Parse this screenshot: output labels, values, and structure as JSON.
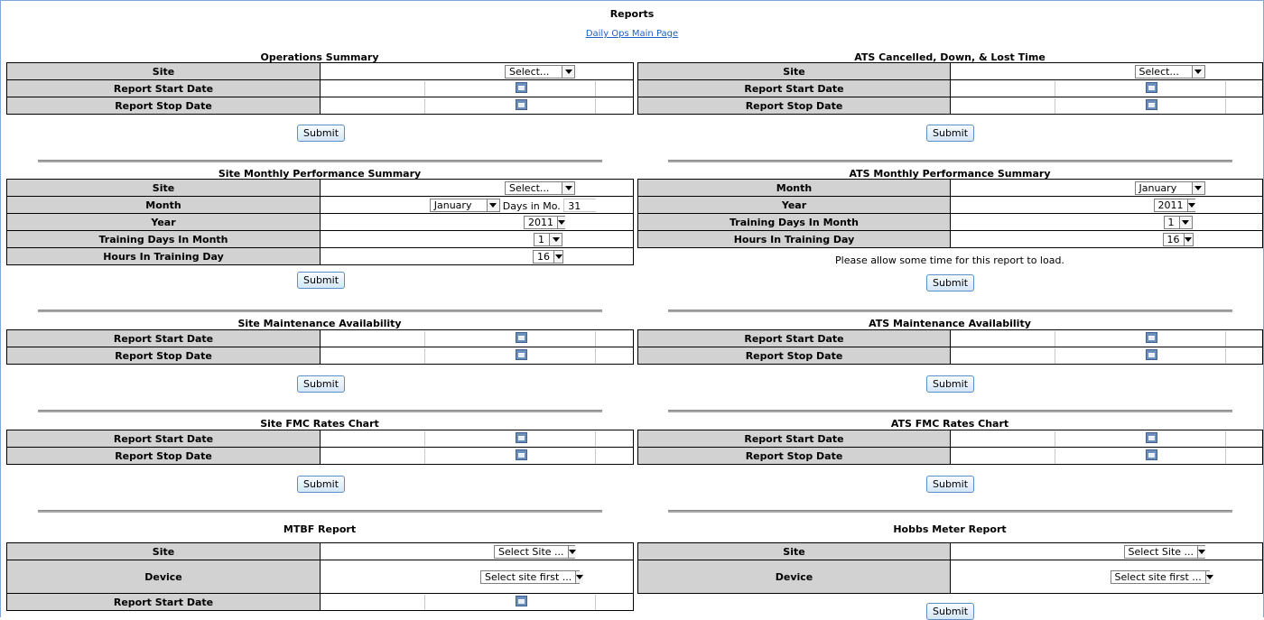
{
  "page": {
    "title": "Reports",
    "main_link": "Daily Ops Main Page"
  },
  "labels": {
    "site": "Site",
    "start": "Report Start Date",
    "stop": "Report Stop Date",
    "month": "Month",
    "year": "Year",
    "training_days": "Training Days In Month",
    "hours": "Hours In Training Day",
    "device": "Device",
    "submit": "Submit"
  },
  "values": {
    "select": "Select...",
    "january": "January",
    "days_in_mo_label": "Days in Mo.",
    "days_in_mo_value": "31",
    "year": "2011",
    "training_days": "1",
    "hours": "16",
    "select_site": "Select Site ...",
    "select_site_first": "Select site first ..."
  },
  "sections": {
    "ops_summary": "Operations Summary",
    "ats_cancelled": "ATS Cancelled, Down, & Lost Time",
    "site_monthly": "Site Monthly Performance Summary",
    "ats_monthly": "ATS Monthly Performance Summary",
    "ats_monthly_note": "Please allow some time for this report to load.",
    "site_maint": "Site Maintenance Availability",
    "ats_maint": "ATS Maintenance Availability",
    "site_fmc": "Site FMC Rates Chart",
    "ats_fmc": "ATS FMC Rates Chart",
    "mtbf": "MTBF Report",
    "hobbs": "Hobbs Meter Report"
  },
  "colors": {
    "label_bg": "#d2d2d2",
    "link": "#1f5fbf",
    "button_border": "#5a8fc7"
  }
}
